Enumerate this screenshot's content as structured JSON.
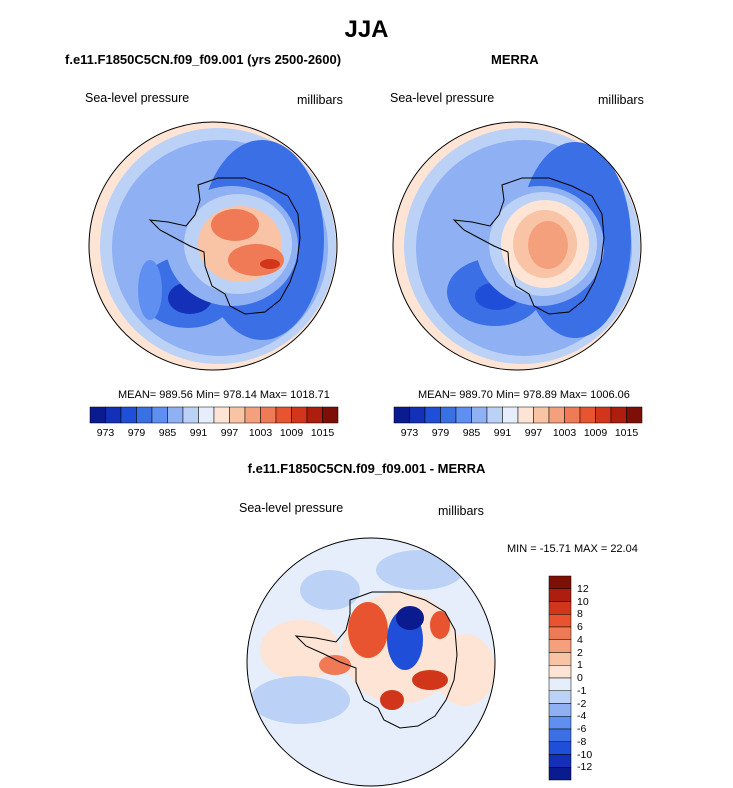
{
  "main_title": "JJA",
  "variable": "Sea-level pressure",
  "units": "millibars",
  "panels": [
    {
      "title": "f.e11.F1850C5CN.f09_f09.001 (yrs 2500-2600)",
      "stats": "MEAN= 989.56  Min= 978.14  Max= 1018.71"
    },
    {
      "title": "MERRA",
      "stats": "MEAN= 989.70  Min= 978.89  Max= 1006.06"
    },
    {
      "title": "f.e11.F1850C5CN.f09_f09.001 - MERRA",
      "stats": "MIN = -15.71 MAX =  22.04"
    }
  ],
  "colorbar_abs": {
    "labels": [
      "973",
      "979",
      "985",
      "991",
      "997",
      "1003",
      "1009",
      "1015"
    ],
    "colors": [
      "#0a1a8f",
      "#1430b8",
      "#1f4fd8",
      "#3b6fe6",
      "#5f8ff0",
      "#8fb0f3",
      "#bcd1f6",
      "#e6eefb",
      "#fde4d4",
      "#f9c4a6",
      "#f5a07c",
      "#f07a56",
      "#e85430",
      "#d2361a",
      "#ad1e0e",
      "#7d0f06"
    ]
  },
  "colorbar_diff": {
    "labels": [
      "12",
      "10",
      "8",
      "6",
      "4",
      "2",
      "1",
      "0",
      "-1",
      "-2",
      "-4",
      "-6",
      "-8",
      "-10",
      "-12"
    ],
    "colors": [
      "#7d0f06",
      "#ad1e0e",
      "#d2361a",
      "#e85430",
      "#f07a56",
      "#f5a07c",
      "#f9c4a6",
      "#fde4d4",
      "#e6eefb",
      "#bcd1f6",
      "#8fb0f3",
      "#5f8ff0",
      "#3b6fe6",
      "#1f4fd8",
      "#1430b8",
      "#0a1a8f"
    ]
  }
}
